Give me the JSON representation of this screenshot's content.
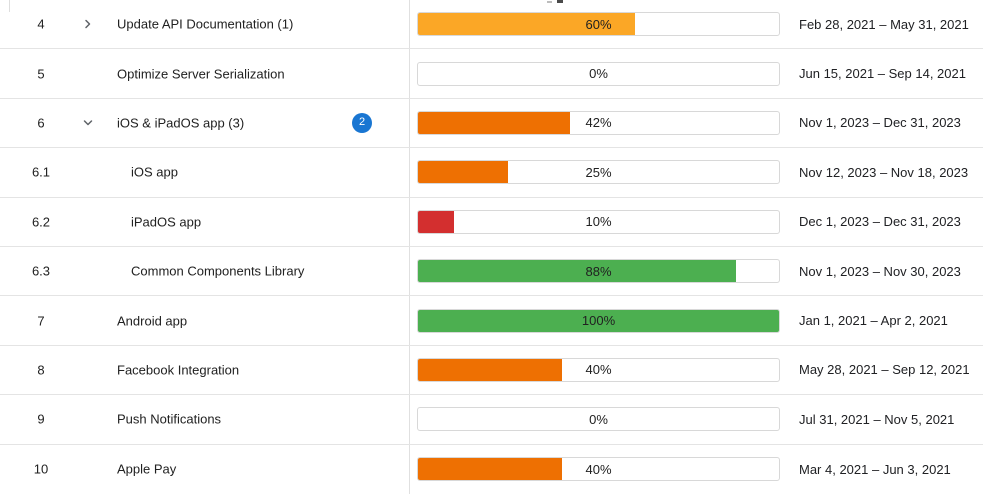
{
  "colors": {
    "amber": "#FBA726",
    "orange": "#EE7002",
    "red": "#D32F2F",
    "green": "#4CAF50",
    "badge_blue": "#1976D2",
    "row_border": "#E0E0E0",
    "text": "#212121"
  },
  "icons": {
    "chevron_collapsed": "chevron-right-icon",
    "chevron_expanded": "chevron-down-icon"
  },
  "table": {
    "rows": [
      {
        "id": "4",
        "level": 0,
        "chevron": "collapsed",
        "name": "Update API Documentation (1)",
        "badge": null,
        "progress": 60,
        "progress_label": "60%",
        "color": "amber",
        "dates": "Feb 28, 2021 – May 31, 2021"
      },
      {
        "id": "5",
        "level": 0,
        "chevron": null,
        "name": "Optimize Server Serialization",
        "badge": null,
        "progress": 0,
        "progress_label": "0%",
        "color": null,
        "dates": "Jun 15, 2021 – Sep 14, 2021"
      },
      {
        "id": "6",
        "level": 0,
        "chevron": "expanded",
        "name": "iOS & iPadOS app (3)",
        "badge": "2",
        "progress": 42,
        "progress_label": "42%",
        "color": "orange",
        "dates": "Nov 1, 2023 – Dec 31, 2023"
      },
      {
        "id": "6.1",
        "level": 1,
        "chevron": null,
        "name": "iOS app",
        "badge": null,
        "progress": 25,
        "progress_label": "25%",
        "color": "orange",
        "dates": "Nov 12, 2023 – Nov 18, 2023"
      },
      {
        "id": "6.2",
        "level": 1,
        "chevron": null,
        "name": "iPadOS app",
        "badge": null,
        "progress": 10,
        "progress_label": "10%",
        "color": "red",
        "dates": "Dec 1, 2023 – Dec 31, 2023"
      },
      {
        "id": "6.3",
        "level": 1,
        "chevron": null,
        "name": "Common Components Library",
        "badge": null,
        "progress": 88,
        "progress_label": "88%",
        "color": "green",
        "dates": "Nov 1, 2023 – Nov 30, 2023"
      },
      {
        "id": "7",
        "level": 0,
        "chevron": null,
        "name": "Android app",
        "badge": null,
        "progress": 100,
        "progress_label": "100%",
        "color": "green",
        "dates": "Jan 1, 2021 – Apr 2, 2021"
      },
      {
        "id": "8",
        "level": 0,
        "chevron": null,
        "name": "Facebook Integration",
        "badge": null,
        "progress": 40,
        "progress_label": "40%",
        "color": "orange",
        "dates": "May 28, 2021 – Sep 12, 2021"
      },
      {
        "id": "9",
        "level": 0,
        "chevron": null,
        "name": "Push Notifications",
        "badge": null,
        "progress": 0,
        "progress_label": "0%",
        "color": null,
        "dates": "Jul 31, 2021 – Nov 5, 2021"
      },
      {
        "id": "10",
        "level": 0,
        "chevron": null,
        "name": "Apple Pay",
        "badge": null,
        "progress": 40,
        "progress_label": "40%",
        "color": "orange",
        "dates": "Mar 4, 2021 – Jun 3, 2021"
      }
    ]
  }
}
